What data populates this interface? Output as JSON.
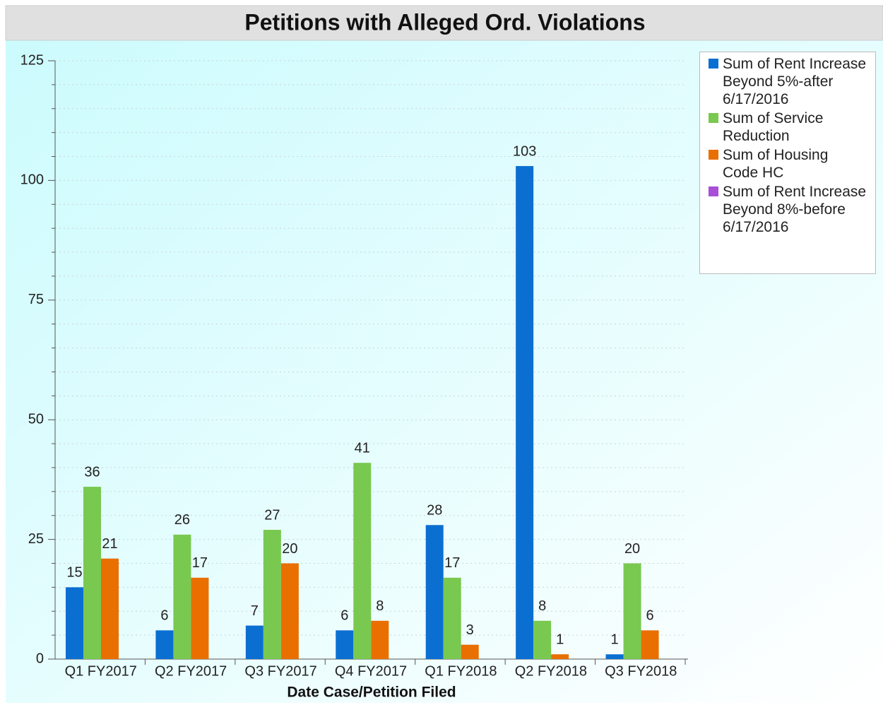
{
  "chart_data": {
    "type": "bar",
    "title": "Petitions with Alleged Ord. Violations",
    "x_label": "Date Case/Petition Filed",
    "categories": [
      "Q1 FY2017",
      "Q2 FY2017",
      "Q3 FY2017",
      "Q4 FY2017",
      "Q1 FY2018",
      "Q2 FY2018",
      "Q3 FY2018"
    ],
    "series": [
      {
        "name": "Sum of Rent Increase Beyond 5%-after 6/17/2016",
        "color": "#0b6fd2",
        "values": [
          15,
          6,
          7,
          6,
          28,
          103,
          1
        ]
      },
      {
        "name": "Sum of Service Reduction",
        "color": "#79c850",
        "values": [
          36,
          26,
          27,
          41,
          17,
          8,
          20
        ]
      },
      {
        "name": "Sum of Housing Code HC",
        "color": "#e86f00",
        "values": [
          21,
          17,
          20,
          8,
          3,
          1,
          6
        ]
      },
      {
        "name": "Sum of Rent Increase Beyond 8%-before 6/17/2016",
        "color": "#a84fd8",
        "values": [
          null,
          null,
          null,
          null,
          null,
          null,
          null
        ]
      }
    ],
    "ylim": [
      0,
      125
    ],
    "yticks": [
      0,
      25,
      50,
      75,
      100,
      125
    ],
    "minor_yticks": [
      5,
      10,
      15,
      20,
      30,
      35,
      40,
      45,
      55,
      60,
      65,
      70,
      80,
      85,
      90,
      95,
      105,
      110,
      115,
      120
    ],
    "grid": true,
    "legend": "top-right"
  }
}
